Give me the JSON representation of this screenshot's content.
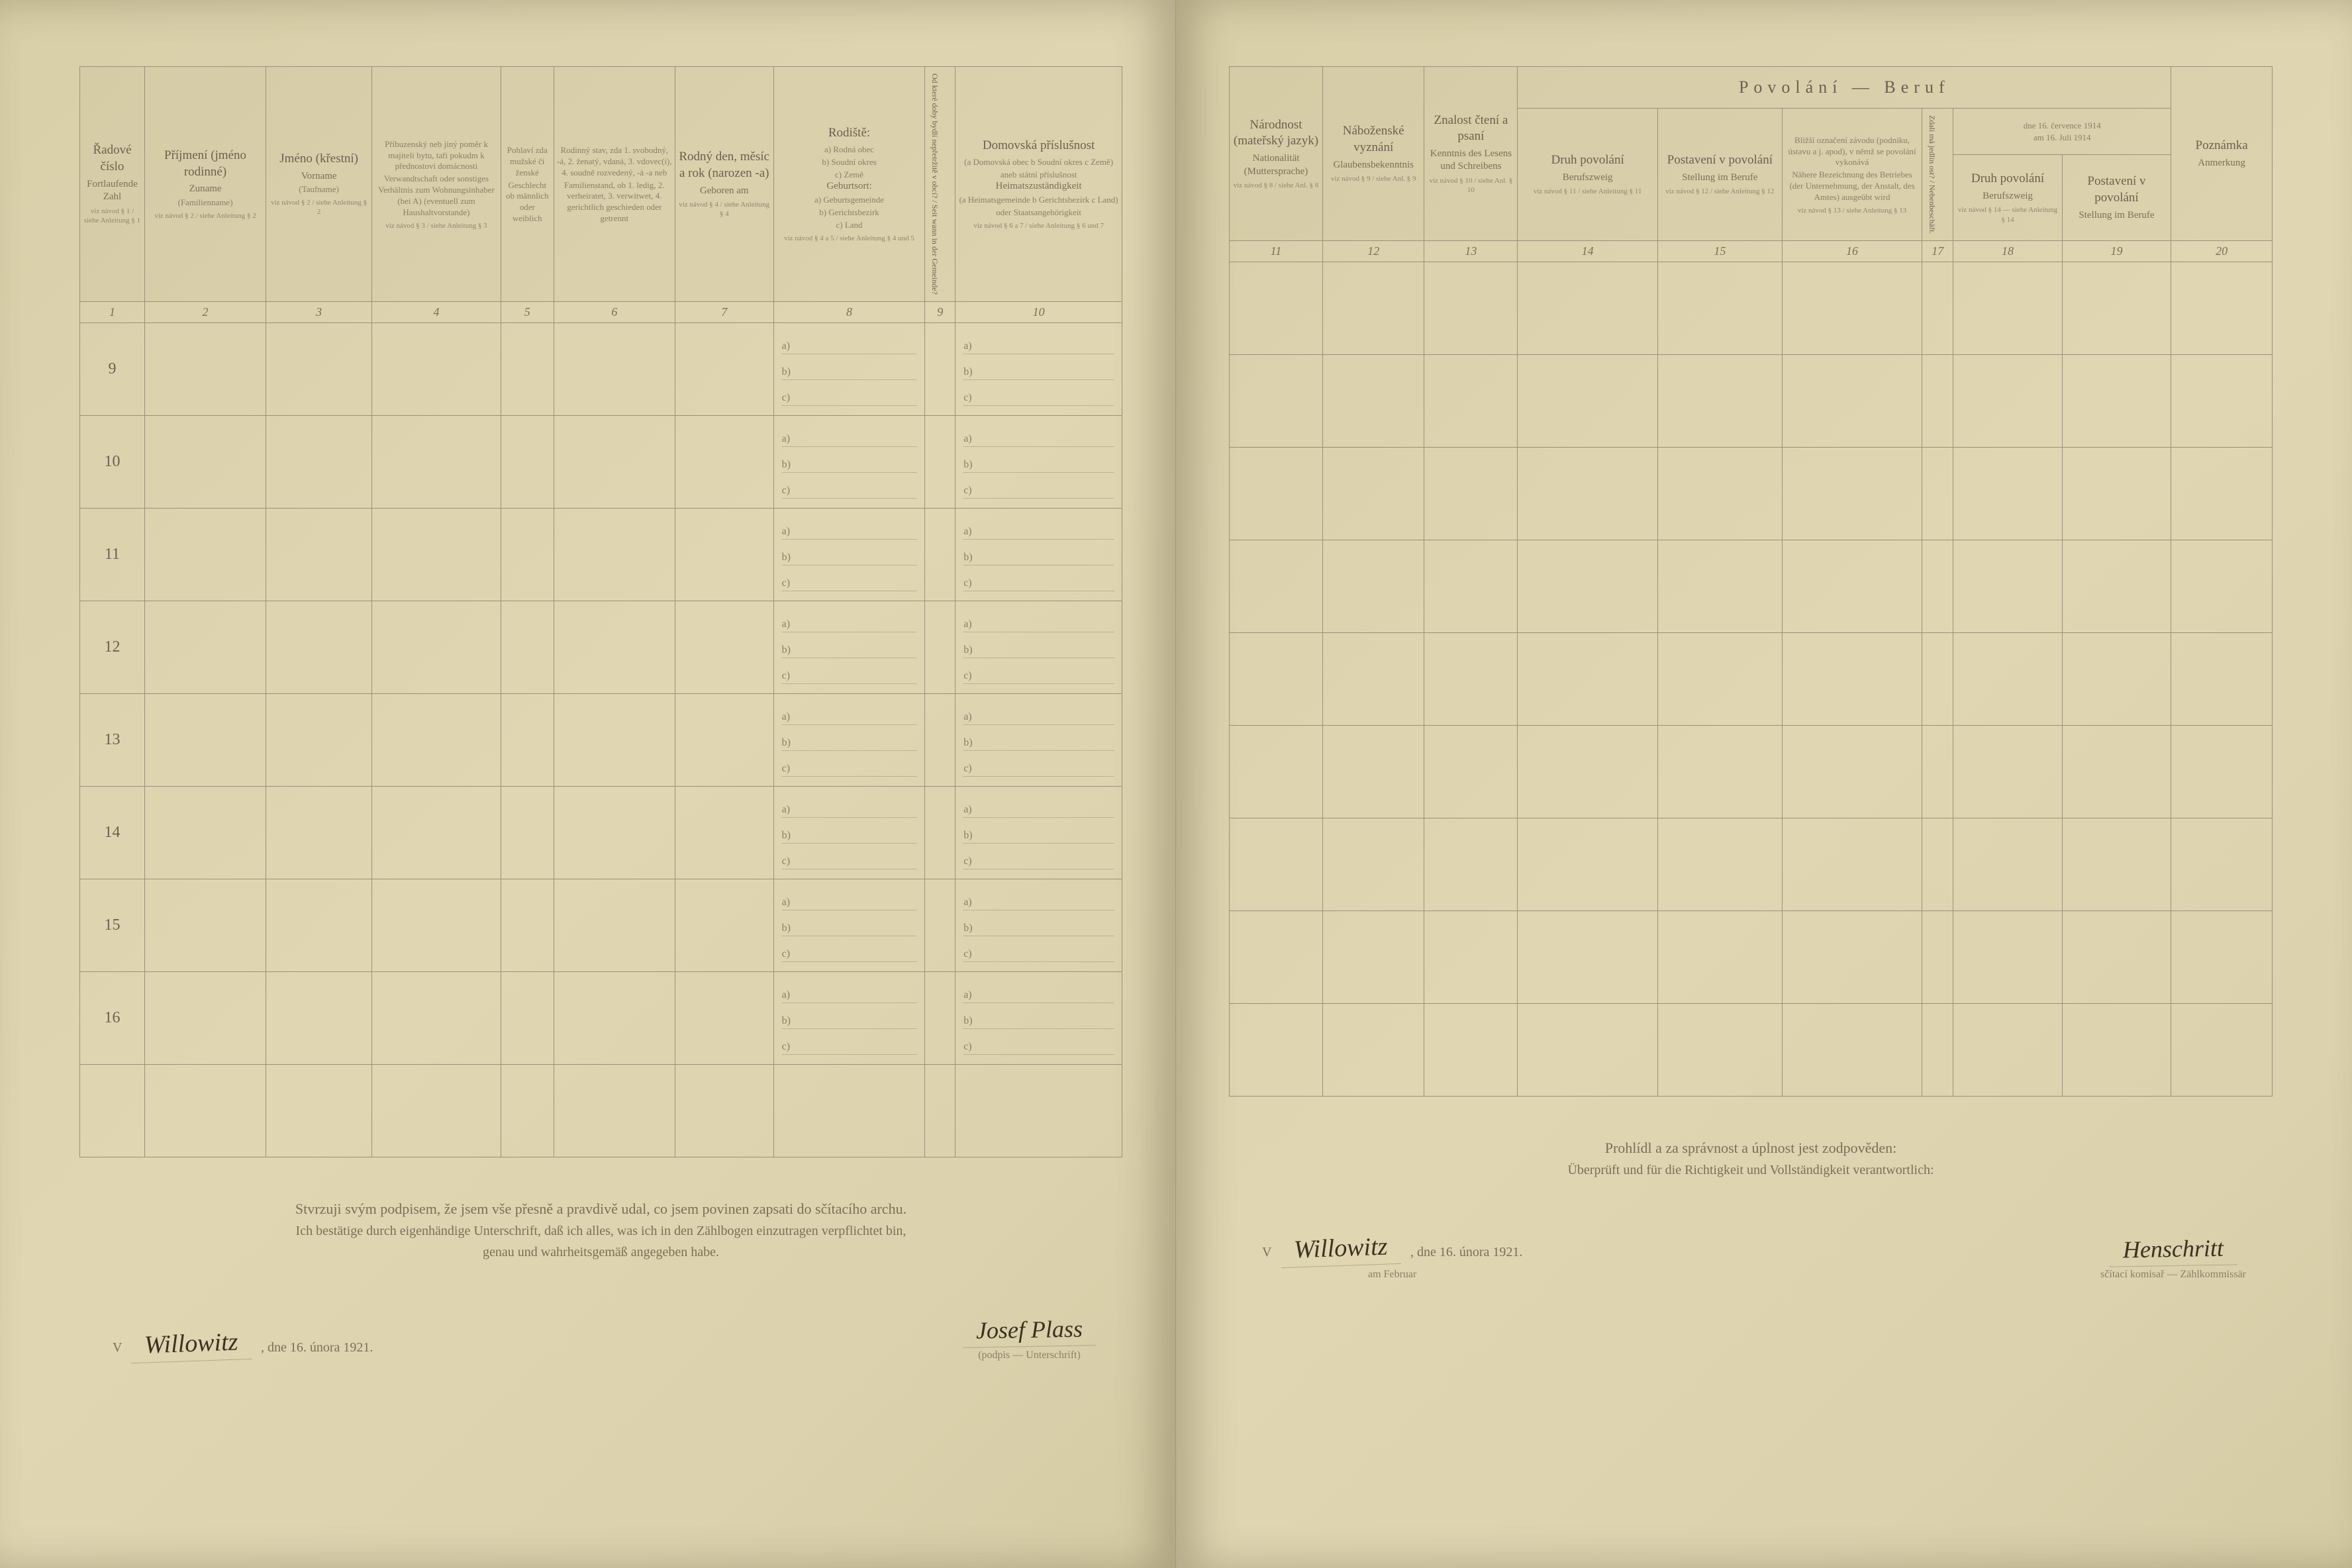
{
  "left": {
    "headers": {
      "c1": {
        "a": "Řadové číslo",
        "b": "Fortlaufende Zahl",
        "note": "viz návod § 1 / siehe Anleitung § 1"
      },
      "c2": {
        "a": "Příjmení (jméno rodinné)",
        "b": "Zuname",
        "c": "(Familienname)",
        "note": "viz návod § 2 / siehe Anleitung § 2"
      },
      "c3": {
        "a": "Jméno (křestní)",
        "b": "Vorname",
        "c": "(Taufname)",
        "note": "viz návod § 2 / siehe Anleitung § 2"
      },
      "c4": {
        "a": "Příbuzenský neb jiný poměr k majiteli bytu, taři pokudm k přednostovi domácnosti",
        "b": "Verwandtschaft oder sonstiges Verhältnis zum Wohnungsinhaber (bei A) (eventuell zum Haushaltvorstande)",
        "note": "viz návod § 3 / siehe Anleitung § 3"
      },
      "c5": {
        "a": "Pohlaví zda mužské či ženské",
        "b": "Geschlecht ob männlich oder weiblich"
      },
      "c6": {
        "a": "Rodinný stav, zda 1. svobodný, -á, 2. ženatý, vdaná, 3. vdovec(i), 4. soudně rozvedený, -á -a neb",
        "b": "Familienstand, ob 1. ledig, 2. verheiratet, 3. verwitwet, 4. gerichtlich geschieden oder getrennt"
      },
      "c7": {
        "a": "Rodný den, měsíc a rok (narozen -a)",
        "b": "Geboren am",
        "note": "viz návod § 4 / siehe Anleitung § 4"
      },
      "c8": {
        "a": "Rodiště:",
        "a1": "a) Rodná obec",
        "a2": "b) Soudní okres",
        "a3": "c) Země",
        "b": "Geburtsort:",
        "b1": "a) Geburts­gemeinde",
        "b2": "b) Gerichtsbezirk",
        "b3": "c) Land",
        "note": "viz návod § 4 a 5 / siehe Anleitung § 4 und 5"
      },
      "c9": {
        "vert": "Od které doby bydlí nepřetržitě v obcí? / Seit wann in der Gemeinde?"
      },
      "c10": {
        "a": "Domovská příslušnost",
        "a1": "(a Domovská obec b Soudní okres c Země)",
        "a2": "aneb státní příslušnost",
        "b": "Heimatszuständigkeit",
        "b1": "(a Heimatsgemeinde b Gerichtsbezirk c Land)",
        "b2": "oder Staatsangehörigkeit",
        "note": "viz návod § 6 a 7 / siehe Anleitung § 6 und 7"
      }
    },
    "colnums": [
      "1",
      "2",
      "3",
      "4",
      "5",
      "6",
      "7",
      "8",
      "9",
      "10"
    ],
    "rownums": [
      "9",
      "10",
      "11",
      "12",
      "13",
      "14",
      "15",
      "16"
    ],
    "bottom": {
      "l1": "Stvrzuji svým podpisem, že jsem vše přesně a pravdivě udal, co jsem povinen zapsati do sčítacího archu.",
      "l2": "Ich bestätige durch eigenhändige Unterschrift, daß ich alles, was ich in den Zählbogen einzutragen verpflichtet bin,",
      "l3": "genau und wahrheitsgemäß angegeben habe."
    },
    "sig": {
      "place_prefix": "V",
      "place": "Willowitz",
      "date_text": ", dne 16. února 1921.",
      "name": "Josef Plass",
      "name_caption": "(podpis — Unterschrift)"
    }
  },
  "right": {
    "headers": {
      "c11": {
        "a": "Národnost (mateřský jazyk)",
        "b": "Nationalität (Muttersprache)",
        "note": "viz návod § 8 / siehe Anl. § 8"
      },
      "c12": {
        "a": "Náboženské vyznání",
        "b": "Glaubensbekenntnis",
        "note": "viz návod § 9 / siehe Anl. § 9"
      },
      "c13": {
        "a": "Znalost čtení a psaní",
        "b": "Kenntnis des Lesens und Schreibens",
        "note": "viz návod § 10 / siehe Anl. § 10"
      },
      "span": "Povolání — Beruf",
      "c14": {
        "a": "Druh povolání",
        "b": "Berufszweig",
        "note": "viz návod § 11 / siehe Anleitung § 11"
      },
      "c15": {
        "a": "Postavení v povolání",
        "b": "Stellung im Berufe",
        "note": "viz návod § 12 / siehe Anleitung § 12"
      },
      "c16": {
        "a": "Bližší označení závodu (podniku, ústavu a j. apod), v němž se povolání vykonává",
        "b": "Nähere Bezeichnung des Betriebes (der Unternehmung, der Anstalt, des Amtes) ausgeübt wird",
        "note": "viz návod § 13 / siehe Anleitung § 13"
      },
      "c17": {
        "vert": "Zdali má jedlin ost? / Nebenbeschäft."
      },
      "c18": {
        "a": "Druh povolání",
        "b": "Berufszweig"
      },
      "c19": {
        "a": "Postavení v povolání",
        "b": "Stellung im Berufe"
      },
      "c18_19_top": {
        "a": "dne 16. července 1914",
        "b": "am 16. Juli 1914"
      },
      "c18_19_note": "viz návod § 14 — siehe Anleitung § 14",
      "c20": {
        "a": "Poznámka",
        "b": "Anmerkung"
      }
    },
    "colnums": [
      "11",
      "12",
      "13",
      "14",
      "15",
      "16",
      "17",
      "18",
      "19",
      "20"
    ],
    "bottom": {
      "l1": "Prohlídl a za správnost a úplnost jest zodpověden:",
      "l2": "Überprüft und für die Richtigkeit und Vollständigkeit verantwortlich:"
    },
    "sig": {
      "place_prefix": "V",
      "place": "Willowitz",
      "date_text": ", dne 16. února 1921.",
      "date_text_de": "am        Februar",
      "name": "Henschritt",
      "name_caption": "sčítací komisař — Zählkommissär"
    }
  },
  "abc_labels": {
    "a": "a)",
    "b": "b)",
    "c": "c)"
  }
}
